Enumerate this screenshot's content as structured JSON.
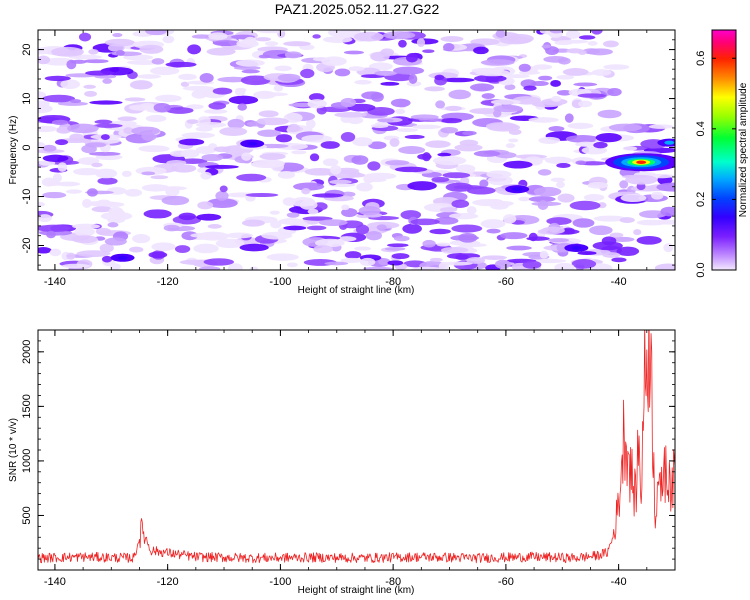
{
  "title": "PAZ1.2025.052.11.27.G22",
  "chart_data": [
    {
      "type": "heatmap",
      "xlabel": "Height of straight line (km)",
      "ylabel": "Frequency (Hz)",
      "xlim": [
        -143,
        -30
      ],
      "ylim": [
        -25,
        24
      ],
      "xticks": [
        -140,
        -120,
        -100,
        -80,
        -60,
        -40
      ],
      "yticks": [
        -20,
        -10,
        0,
        10,
        20
      ],
      "colorbar": {
        "label": "Normalized spectral amplitude",
        "range": [
          0.0,
          0.68
        ],
        "ticks": [
          0.0,
          0.2,
          0.4,
          0.6
        ],
        "colormap": [
          "#ffffff",
          "#e9d6ff",
          "#b77bff",
          "#7a1fff",
          "#3d00ff",
          "#0033ff",
          "#00aaff",
          "#00ffcc",
          "#00ff33",
          "#88ff00",
          "#ffff00",
          "#ff8800",
          "#ff2200",
          "#ff0088",
          "#ff00ff"
        ]
      },
      "features": [
        {
          "x": -128,
          "y": -22.5,
          "value": 0.2
        },
        {
          "x": -105,
          "y": 0.8,
          "value": 0.15
        },
        {
          "x": -58,
          "y": -8.5,
          "value": 0.15
        },
        {
          "x": -47.5,
          "y": -20.5,
          "value": 0.17
        },
        {
          "x": -36,
          "y": -3,
          "value": 0.68
        },
        {
          "x": -31,
          "y": 1,
          "value": 0.3
        }
      ]
    },
    {
      "type": "line",
      "xlabel": "Height of straight line (km)",
      "ylabel": "SNR (10 * v/v)",
      "xlim": [
        -143,
        -30
      ],
      "ylim": [
        0,
        2200
      ],
      "xticks": [
        -140,
        -120,
        -100,
        -80,
        -60,
        -40
      ],
      "yticks": [
        500,
        1000,
        1500,
        2000
      ],
      "color": "#ee2222",
      "series": [
        {
          "x": [
            -143,
            -135,
            -126,
            -124.5,
            -123,
            -115,
            -105,
            -95,
            -85,
            -75,
            -65,
            -55,
            -48,
            -44,
            -42,
            -41,
            -40,
            -39,
            -38,
            -37,
            -36.5,
            -36,
            -35.5,
            -35,
            -34.5,
            -34,
            -33.5,
            -33,
            -32.5,
            -32,
            -31.5,
            -31,
            -30.5,
            -30
          ],
          "y": [
            110,
            120,
            110,
            380,
            180,
            120,
            110,
            115,
            110,
            120,
            110,
            120,
            110,
            130,
            160,
            300,
            600,
            1300,
            950,
            650,
            1150,
            750,
            1650,
            1950,
            2200,
            1400,
            500,
            900,
            600,
            1050,
            800,
            950,
            700,
            950
          ]
        }
      ]
    }
  ]
}
